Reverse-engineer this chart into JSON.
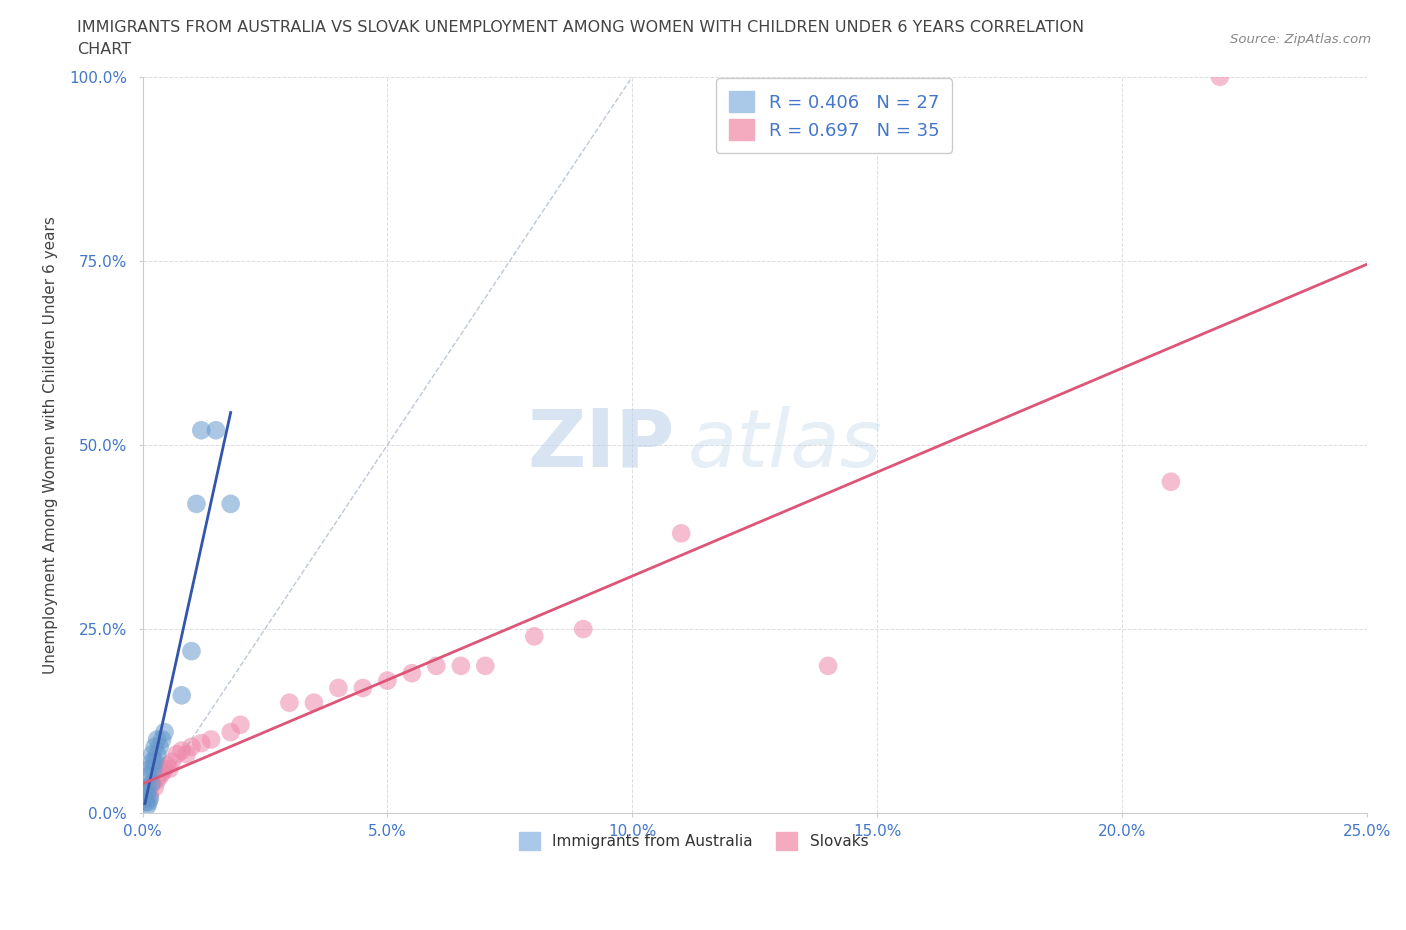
{
  "title_line1": "IMMIGRANTS FROM AUSTRALIA VS SLOVAK UNEMPLOYMENT AMONG WOMEN WITH CHILDREN UNDER 6 YEARS CORRELATION",
  "title_line2": "CHART",
  "source_text": "Source: ZipAtlas.com",
  "xlabel": "Immigrants from Australia",
  "ylabel": "Unemployment Among Women with Children Under 6 years",
  "xlim": [
    0.0,
    0.25
  ],
  "ylim": [
    0.0,
    1.0
  ],
  "xticks": [
    0.0,
    0.05,
    0.1,
    0.15,
    0.2,
    0.25
  ],
  "yticks": [
    0.0,
    0.25,
    0.5,
    0.75,
    1.0
  ],
  "xticklabels": [
    "0.0%",
    "5.0%",
    "10.0%",
    "15.0%",
    "20.0%",
    "25.0%"
  ],
  "yticklabels": [
    "0.0%",
    "25.0%",
    "50.0%",
    "75.0%",
    "100.0%"
  ],
  "background_color": "#ffffff",
  "R_blue": 0.406,
  "N_blue": 27,
  "R_pink": 0.697,
  "N_pink": 35,
  "blue_scatter_x": [
    0.0005,
    0.0005,
    0.0007,
    0.0008,
    0.001,
    0.001,
    0.0012,
    0.0012,
    0.0015,
    0.0015,
    0.0018,
    0.002,
    0.002,
    0.0022,
    0.0025,
    0.0025,
    0.003,
    0.003,
    0.0035,
    0.004,
    0.0045,
    0.008,
    0.01,
    0.011,
    0.012,
    0.015,
    0.018
  ],
  "blue_scatter_y": [
    0.02,
    0.03,
    0.015,
    0.025,
    0.01,
    0.035,
    0.015,
    0.05,
    0.02,
    0.06,
    0.04,
    0.07,
    0.08,
    0.06,
    0.07,
    0.09,
    0.08,
    0.1,
    0.09,
    0.1,
    0.11,
    0.16,
    0.22,
    0.42,
    0.52,
    0.52,
    0.42
  ],
  "pink_scatter_x": [
    0.0005,
    0.001,
    0.0015,
    0.002,
    0.0025,
    0.003,
    0.0035,
    0.004,
    0.0045,
    0.005,
    0.0055,
    0.006,
    0.007,
    0.008,
    0.009,
    0.01,
    0.012,
    0.014,
    0.018,
    0.02,
    0.03,
    0.035,
    0.04,
    0.045,
    0.05,
    0.055,
    0.06,
    0.065,
    0.07,
    0.08,
    0.09,
    0.11,
    0.14,
    0.21,
    0.22
  ],
  "pink_scatter_y": [
    0.02,
    0.03,
    0.025,
    0.04,
    0.035,
    0.045,
    0.05,
    0.055,
    0.06,
    0.065,
    0.06,
    0.07,
    0.08,
    0.085,
    0.08,
    0.09,
    0.095,
    0.1,
    0.11,
    0.12,
    0.15,
    0.15,
    0.17,
    0.17,
    0.18,
    0.19,
    0.2,
    0.2,
    0.2,
    0.24,
    0.25,
    0.38,
    0.2,
    0.45,
    1.0
  ],
  "dot_size": 180,
  "dot_alpha": 0.55,
  "blue_dot_color": "#6699cc",
  "pink_dot_color": "#ee88aa",
  "blue_line_color": "#3355aa",
  "pink_line_color": "#dd5577",
  "diag_line_color": "#aabbcc",
  "grid_color": "#dddddd",
  "tick_label_color": "#4477cc",
  "ylabel_color": "#444444",
  "title_color": "#444444",
  "source_color": "#888888"
}
